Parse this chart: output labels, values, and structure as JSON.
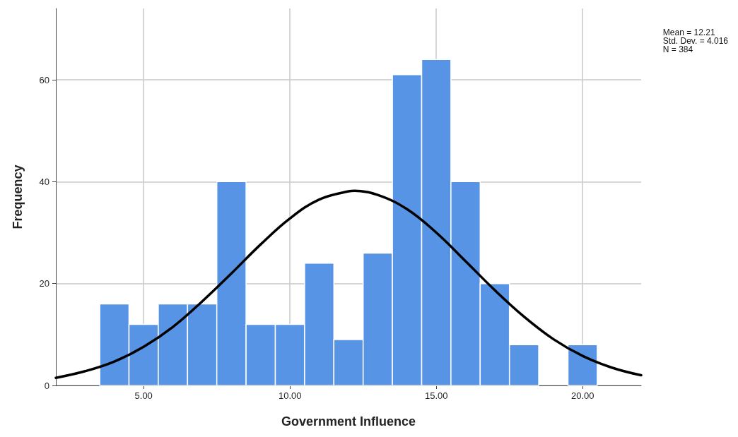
{
  "chart_data": {
    "type": "histogram",
    "xlabel": "Government Influence",
    "ylabel": "Frequency",
    "annotations": [
      "Mean = 12.21",
      "Std. Dev. = 4.016",
      "N = 384"
    ],
    "xlim": [
      2,
      22
    ],
    "ylim": [
      0,
      74
    ],
    "xticks": [
      {
        "value": 5,
        "label": "5.00"
      },
      {
        "value": 10,
        "label": "10.00"
      },
      {
        "value": 15,
        "label": "15.00"
      },
      {
        "value": 20,
        "label": "20.00"
      }
    ],
    "yticks": [
      0,
      20,
      40,
      60
    ],
    "grid": true,
    "series": [
      {
        "color": "#5794e6",
        "bins": [
          3.5,
          4.5,
          5.5,
          6.5,
          7.5,
          8.5,
          9.5,
          10.5,
          11.5,
          12.5,
          13.5,
          14.5,
          15.5,
          16.5,
          17.5,
          18.5,
          19.5,
          20.5
        ],
        "values": [
          16,
          12,
          16,
          16,
          40,
          12,
          12,
          24,
          9,
          26,
          61,
          64,
          40,
          20,
          8,
          0,
          8
        ]
      },
      {
        "type": "line",
        "color": "#000000",
        "x": [
          2,
          3,
          4,
          5,
          6,
          7,
          8,
          9,
          10,
          11,
          12,
          12.21,
          13,
          14,
          15,
          16,
          17,
          18,
          19,
          20,
          21,
          22
        ],
        "values": [
          1.5,
          2.8,
          4.7,
          7.6,
          11.5,
          16.5,
          22,
          27.7,
          32.8,
          36.5,
          38.1,
          38.2,
          37.4,
          34.6,
          30,
          24.4,
          18.7,
          13.5,
          9.1,
          5.8,
          3.5,
          2
        ]
      }
    ]
  }
}
